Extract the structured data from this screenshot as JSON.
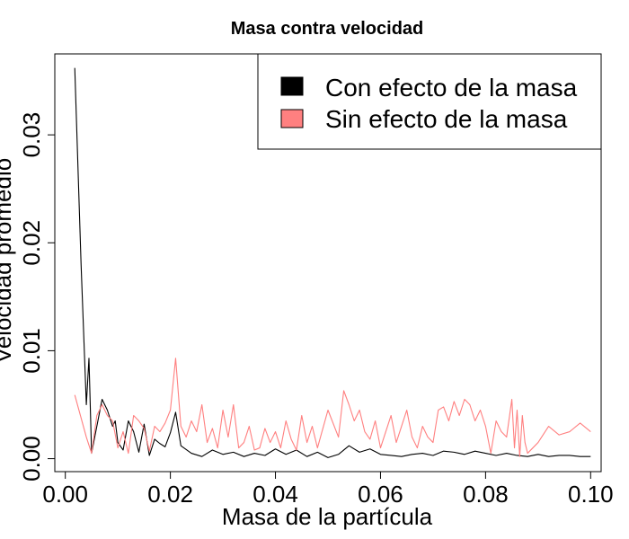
{
  "chart_data": {
    "type": "line",
    "title": "Masa contra velocidad",
    "xlabel": "Masa de la partícula",
    "ylabel": "Velocidad promedio",
    "xlim": [
      -0.002,
      0.102
    ],
    "ylim": [
      -0.0012,
      0.0375
    ],
    "x_ticks": [
      0.0,
      0.02,
      0.04,
      0.06,
      0.08,
      0.1
    ],
    "x_tick_labels": [
      "0.00",
      "0.02",
      "0.04",
      "0.06",
      "0.08",
      "0.10"
    ],
    "y_ticks": [
      0.0,
      0.01,
      0.02,
      0.03
    ],
    "y_tick_labels": [
      "0.00",
      "0.01",
      "0.02",
      "0.03"
    ],
    "grid": false,
    "legend_position": "top-right",
    "series": [
      {
        "name": "Con efecto de la masa",
        "color": "#000000",
        "x": [
          0.0018,
          0.003,
          0.004,
          0.0045,
          0.005,
          0.006,
          0.007,
          0.008,
          0.009,
          0.0095,
          0.01,
          0.011,
          0.012,
          0.013,
          0.014,
          0.015,
          0.016,
          0.017,
          0.018,
          0.019,
          0.02,
          0.021,
          0.022,
          0.024,
          0.026,
          0.028,
          0.03,
          0.032,
          0.034,
          0.036,
          0.038,
          0.04,
          0.042,
          0.044,
          0.046,
          0.048,
          0.05,
          0.052,
          0.054,
          0.056,
          0.058,
          0.06,
          0.062,
          0.064,
          0.066,
          0.068,
          0.07,
          0.072,
          0.074,
          0.076,
          0.078,
          0.08,
          0.082,
          0.084,
          0.086,
          0.088,
          0.09,
          0.092,
          0.094,
          0.096,
          0.098,
          0.1
        ],
        "y": [
          0.0362,
          0.018,
          0.005,
          0.0093,
          0.0005,
          0.003,
          0.0055,
          0.0045,
          0.003,
          0.0035,
          0.0015,
          0.0008,
          0.0035,
          0.0025,
          0.0006,
          0.0032,
          0.0003,
          0.0018,
          0.0014,
          0.0011,
          0.0024,
          0.0043,
          0.0012,
          0.0005,
          0.0002,
          0.0008,
          0.0004,
          0.0006,
          0.0002,
          0.0005,
          0.0003,
          0.0009,
          0.0004,
          0.0008,
          0.0002,
          0.0006,
          0.0001,
          0.0004,
          0.0012,
          0.0006,
          0.0009,
          0.0004,
          0.0003,
          0.0002,
          0.0004,
          0.0005,
          0.0003,
          0.0007,
          0.0006,
          0.0004,
          0.0007,
          0.0005,
          0.0003,
          0.0005,
          0.0003,
          0.0002,
          0.0004,
          0.0002,
          0.0003,
          0.0003,
          0.0002,
          0.0002
        ]
      },
      {
        "name": "Sin efecto de la masa",
        "color": "#ff8080",
        "x": [
          0.0018,
          0.004,
          0.005,
          0.006,
          0.007,
          0.008,
          0.009,
          0.01,
          0.011,
          0.012,
          0.013,
          0.014,
          0.015,
          0.016,
          0.017,
          0.018,
          0.019,
          0.02,
          0.021,
          0.022,
          0.023,
          0.024,
          0.025,
          0.026,
          0.027,
          0.028,
          0.029,
          0.03,
          0.031,
          0.032,
          0.033,
          0.034,
          0.035,
          0.036,
          0.037,
          0.038,
          0.039,
          0.04,
          0.041,
          0.042,
          0.043,
          0.044,
          0.045,
          0.046,
          0.047,
          0.048,
          0.05,
          0.052,
          0.053,
          0.054,
          0.055,
          0.056,
          0.057,
          0.058,
          0.059,
          0.06,
          0.061,
          0.062,
          0.063,
          0.064,
          0.065,
          0.066,
          0.067,
          0.068,
          0.069,
          0.07,
          0.071,
          0.072,
          0.073,
          0.074,
          0.075,
          0.076,
          0.077,
          0.078,
          0.079,
          0.08,
          0.081,
          0.082,
          0.083,
          0.084,
          0.085,
          0.0855,
          0.086,
          0.0865,
          0.087,
          0.0875,
          0.088,
          0.09,
          0.092,
          0.094,
          0.096,
          0.098,
          0.1
        ],
        "y": [
          0.0059,
          0.002,
          0.0005,
          0.004,
          0.005,
          0.004,
          0.0035,
          0.001,
          0.0025,
          0.0005,
          0.004,
          0.0035,
          0.0028,
          0.0007,
          0.003,
          0.0025,
          0.0033,
          0.0045,
          0.0093,
          0.003,
          0.002,
          0.0035,
          0.0025,
          0.005,
          0.0015,
          0.0028,
          0.001,
          0.0045,
          0.002,
          0.005,
          0.001,
          0.0015,
          0.003,
          0.0008,
          0.001,
          0.0028,
          0.0015,
          0.0025,
          0.001,
          0.0035,
          0.0018,
          0.0008,
          0.004,
          0.0015,
          0.003,
          0.001,
          0.0045,
          0.002,
          0.0063,
          0.005,
          0.0035,
          0.0045,
          0.0025,
          0.0018,
          0.0035,
          0.001,
          0.0025,
          0.004,
          0.0015,
          0.003,
          0.0045,
          0.002,
          0.001,
          0.003,
          0.002,
          0.0015,
          0.0045,
          0.0048,
          0.0035,
          0.0053,
          0.004,
          0.0055,
          0.005,
          0.0035,
          0.0045,
          0.003,
          0.0005,
          0.0035,
          0.0025,
          0.002,
          0.0055,
          0.001,
          0.0045,
          0.0002,
          0.004,
          0.0015,
          0.0005,
          0.0015,
          0.003,
          0.0022,
          0.0025,
          0.0033,
          0.0025
        ]
      }
    ]
  }
}
